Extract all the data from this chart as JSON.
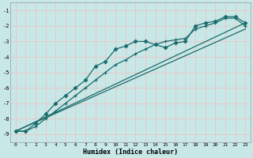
{
  "xlabel": "Humidex (Indice chaleur)",
  "ylabel": "",
  "xlim": [
    -0.5,
    23.5
  ],
  "ylim": [
    -9.5,
    -0.5
  ],
  "xticks": [
    0,
    1,
    2,
    3,
    4,
    5,
    6,
    7,
    8,
    9,
    10,
    11,
    12,
    13,
    14,
    15,
    16,
    17,
    18,
    19,
    20,
    21,
    22,
    23
  ],
  "yticks": [
    -9,
    -8,
    -7,
    -6,
    -5,
    -4,
    -3,
    -2,
    -1
  ],
  "bg_color": "#c8e8e8",
  "grid_color": "#e8c8c8",
  "line_color": "#1a6b6b",
  "line1_x": [
    0,
    1,
    2,
    3,
    4,
    5,
    6,
    7,
    8,
    9,
    10,
    11,
    12,
    13,
    14,
    15,
    16,
    17,
    18,
    19,
    20,
    21,
    22,
    23
  ],
  "line1_y": [
    -8.8,
    -8.8,
    -8.3,
    -7.7,
    -7.0,
    -6.5,
    -6.0,
    -5.5,
    -4.6,
    -4.3,
    -3.5,
    -3.3,
    -3.0,
    -3.0,
    -3.2,
    -3.4,
    -3.1,
    -3.0,
    -2.0,
    -1.8,
    -1.7,
    -1.4,
    -1.4,
    -1.8
  ],
  "line2_x": [
    0,
    1,
    2,
    3,
    4,
    5,
    6,
    7,
    8,
    9,
    10,
    11,
    12,
    13,
    14,
    15,
    16,
    17,
    18,
    19,
    20,
    21,
    22,
    23
  ],
  "line2_y": [
    -8.8,
    -8.8,
    -8.5,
    -8.0,
    -7.5,
    -7.0,
    -6.5,
    -6.0,
    -5.5,
    -5.0,
    -4.5,
    -4.2,
    -3.8,
    -3.5,
    -3.2,
    -3.0,
    -2.9,
    -2.8,
    -2.2,
    -2.0,
    -1.8,
    -1.5,
    -1.5,
    -2.0
  ],
  "line3_x": [
    0,
    23
  ],
  "line3_y": [
    -8.8,
    -1.8
  ],
  "line4_x": [
    0,
    23
  ],
  "line4_y": [
    -8.8,
    -2.2
  ]
}
